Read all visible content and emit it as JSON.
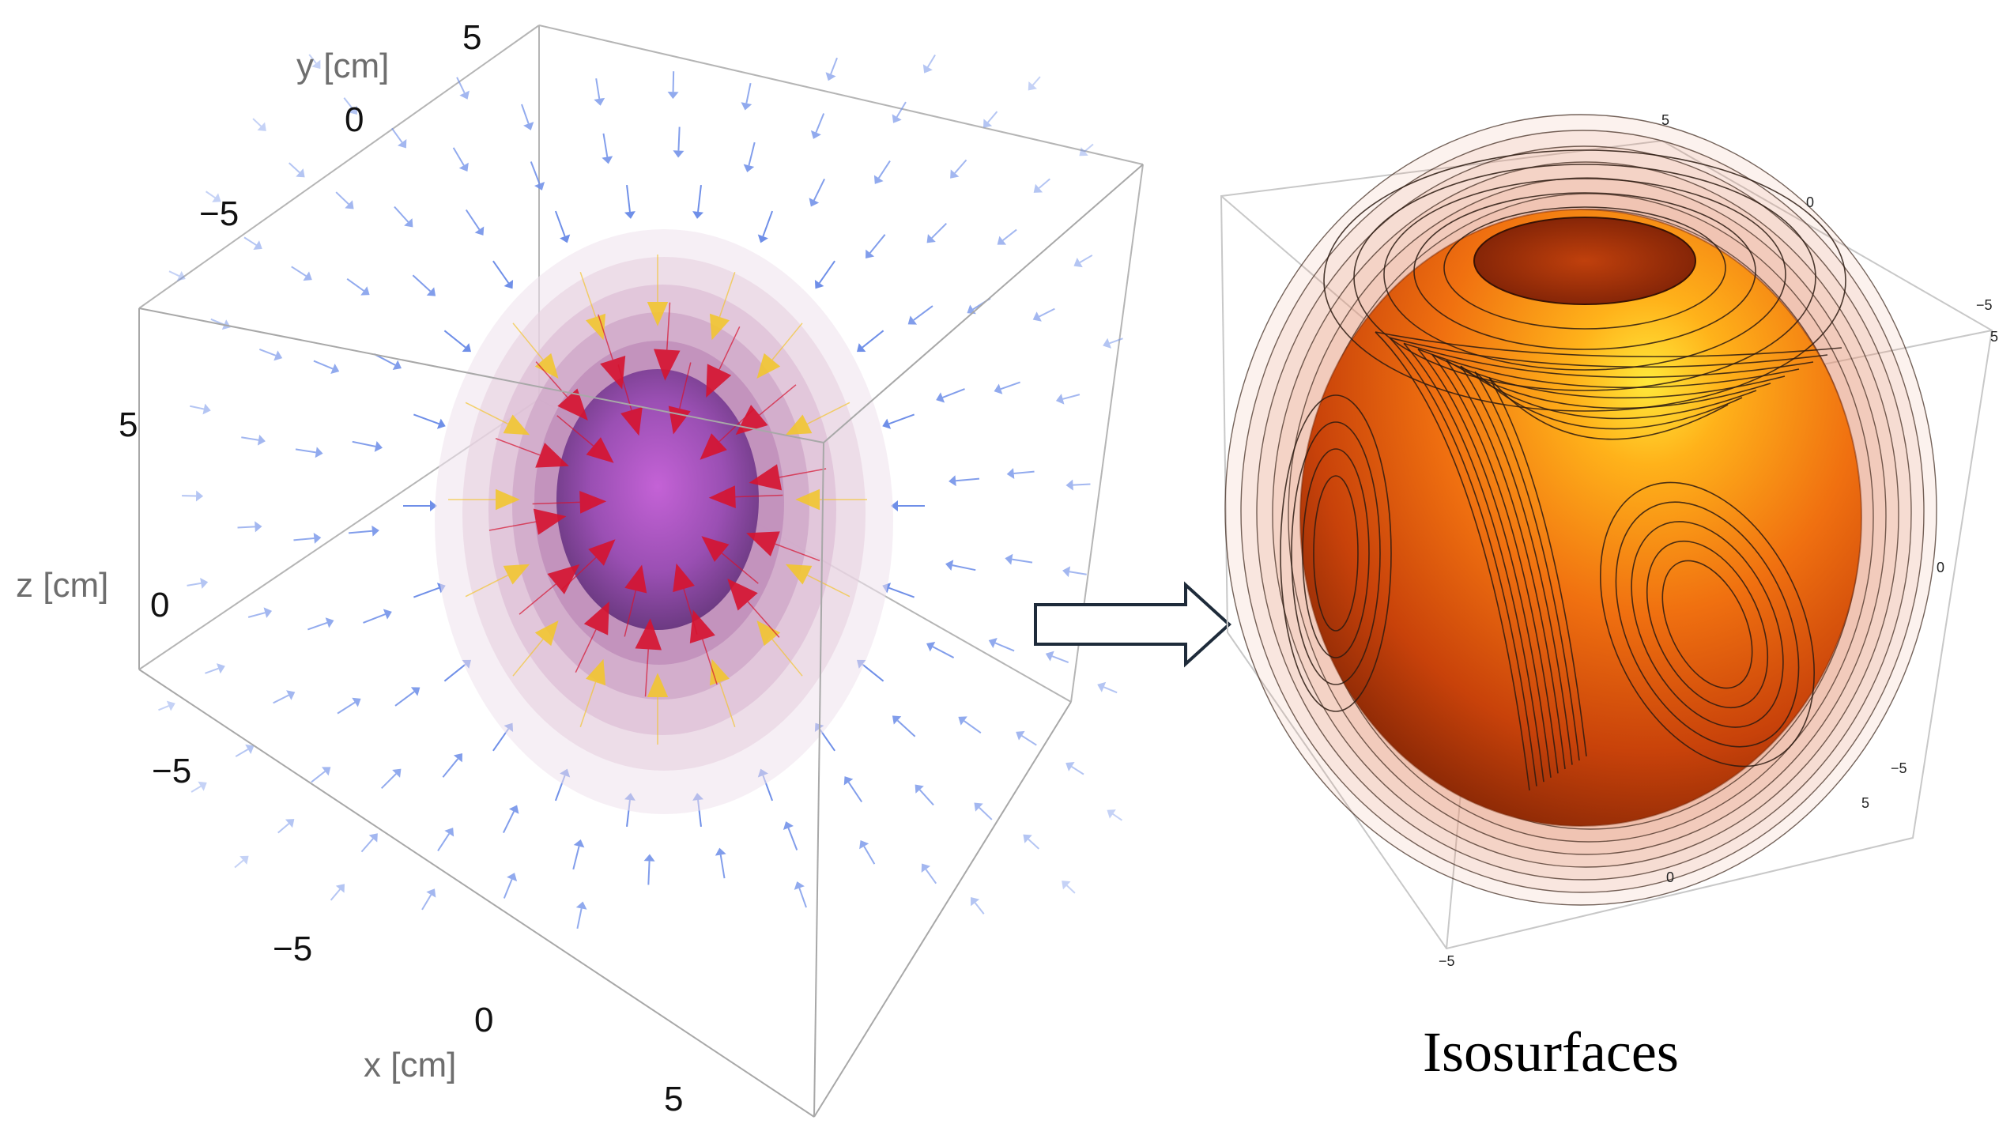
{
  "left_panel": {
    "axis_labels": {
      "x": "x [cm]",
      "y": "y [cm]",
      "z": "z [cm]"
    },
    "x_ticks": [
      "−5",
      "0",
      "5"
    ],
    "y_ticks": [
      "5",
      "0",
      "−5"
    ],
    "z_ticks": [
      "5",
      "0",
      "−5"
    ]
  },
  "right_panel": {
    "caption": "Isosurfaces",
    "ticks_top": [
      "5",
      "0",
      "−5"
    ],
    "ticks_right": [
      "5",
      "0",
      "−5"
    ],
    "ticks_bottom": [
      "5",
      "0",
      "−5"
    ]
  },
  "colors": {
    "arrow_blue": "#6f8fe8",
    "arrow_red": "#d6132f",
    "arrow_yellow": "#f2c530",
    "sphere_purple": "#a44fc0",
    "iso_orange": "#f07a10",
    "arrow_outline": "#1e2b3a"
  }
}
